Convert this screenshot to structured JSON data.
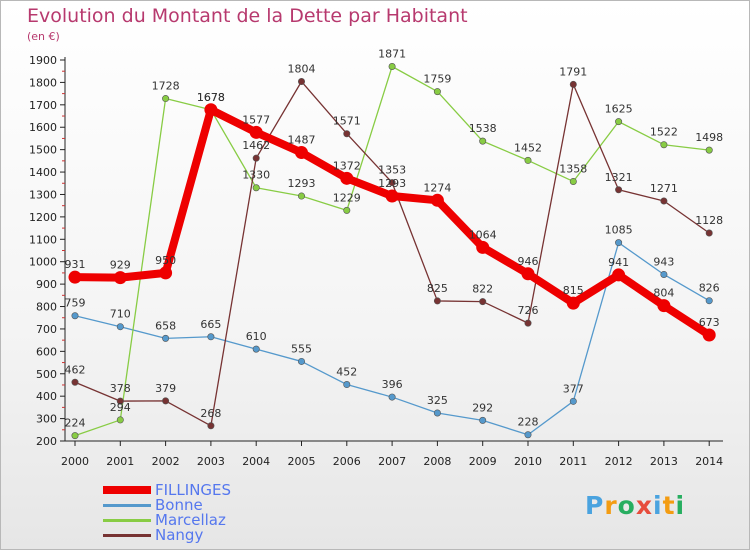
{
  "chart_data": {
    "type": "line",
    "title": "Evolution du Montant de la Dette par Habitant",
    "subtitle": "(en €)",
    "x": [
      "2000",
      "2001",
      "2002",
      "2003",
      "2004",
      "2005",
      "2006",
      "2007",
      "2008",
      "2009",
      "2010",
      "2011",
      "2012",
      "2013",
      "2014"
    ],
    "ylim": [
      200,
      1900
    ],
    "yticks": [
      200,
      300,
      400,
      500,
      600,
      700,
      800,
      900,
      1000,
      1100,
      1200,
      1300,
      1400,
      1500,
      1600,
      1700,
      1800,
      1900
    ],
    "grid": false,
    "legend_position": "bottom-left",
    "series": [
      {
        "name": "FILLINGES",
        "color": "#ee0000",
        "values": [
          931,
          929,
          950,
          1678,
          1577,
          1487,
          1372,
          1293,
          1274,
          1064,
          946,
          815,
          941,
          804,
          673
        ]
      },
      {
        "name": "Bonne",
        "color": "#5599cc",
        "values": [
          759,
          710,
          658,
          665,
          610,
          555,
          452,
          396,
          325,
          292,
          228,
          377,
          1085,
          943,
          826
        ]
      },
      {
        "name": "Marcellaz",
        "color": "#88cc44",
        "values": [
          224,
          294,
          1728,
          1678,
          1330,
          1293,
          1229,
          1871,
          1759,
          1538,
          1452,
          1358,
          1625,
          1522,
          1498
        ]
      },
      {
        "name": "Nangy",
        "color": "#773333",
        "values": [
          462,
          378,
          379,
          268,
          1462,
          1804,
          1571,
          1353,
          825,
          822,
          726,
          1791,
          1321,
          1271,
          1128
        ]
      }
    ]
  },
  "logo": {
    "letters": [
      "P",
      "r",
      "o",
      "x",
      "i",
      "t",
      "i"
    ],
    "colors": [
      "#4aa3df",
      "#f39c12",
      "#27ae60",
      "#e74c3c",
      "#4aa3df",
      "#f39c12",
      "#27ae60"
    ]
  }
}
